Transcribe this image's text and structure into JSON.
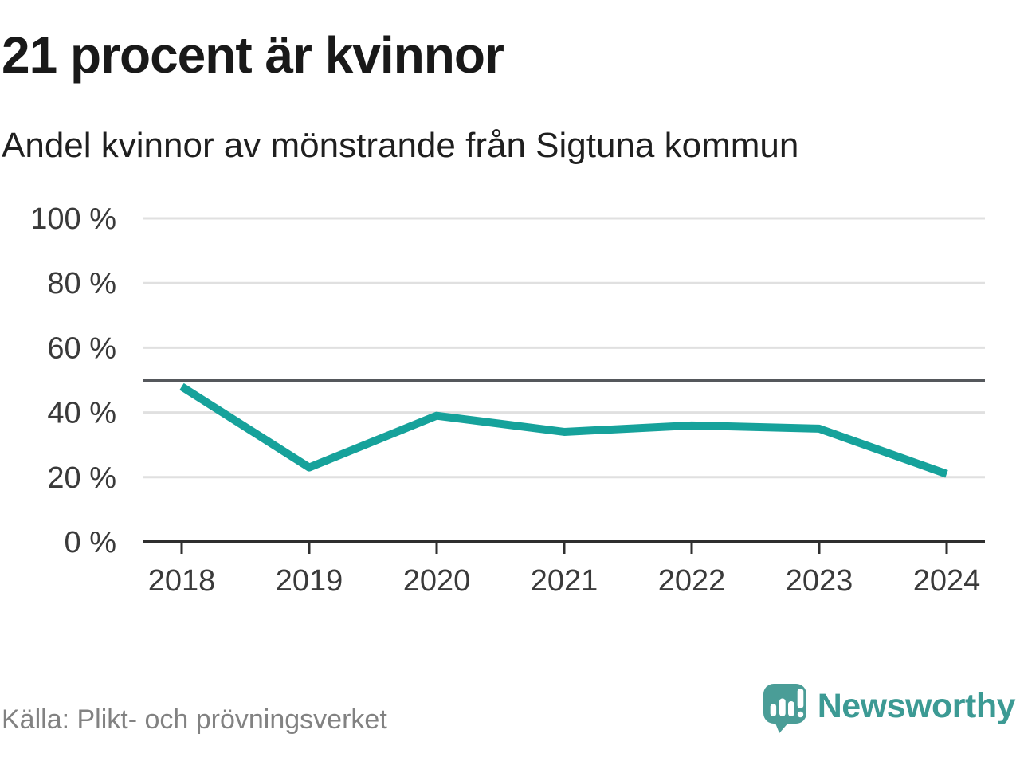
{
  "title": "21 procent är kvinnor",
  "subtitle": "Andel kvinnor av mönstrande från Sigtuna kommun",
  "source": "Källa: Plikt- och prövningsverket",
  "logo": {
    "text": "Newsworthy",
    "icon": "newsworthy-speech-bubble-bar-chart-icon"
  },
  "colors": {
    "line": "#16a29b",
    "reference_line": "#55585c",
    "gridline": "#e0e0e0",
    "axis": "#2f2f2f",
    "tick": "#2f2f2f",
    "axis_label": "#3a3a3a",
    "title_text": "#191919",
    "source_text": "#828282",
    "logo_teal": "#4a9d97",
    "logo_text_teal": "#3c9a94",
    "logo_glyph_white": "#ffffff"
  },
  "chart_data": {
    "type": "line",
    "title": "21 procent är kvinnor",
    "subtitle": "Andel kvinnor av mönstrande från Sigtuna kommun",
    "x": [
      "2018",
      "2019",
      "2020",
      "2021",
      "2022",
      "2023",
      "2024"
    ],
    "series": [
      {
        "name": "Andel kvinnor av mönstrande",
        "values": [
          48,
          23,
          39,
          34,
          36,
          35,
          21
        ]
      }
    ],
    "unit": "%",
    "ylim": [
      0,
      100
    ],
    "yticks": [
      0,
      20,
      40,
      60,
      80,
      100
    ],
    "ytick_format": "{v} %",
    "reference_line": 50,
    "grid": true,
    "legend": false,
    "xlabel": "",
    "ylabel": ""
  }
}
